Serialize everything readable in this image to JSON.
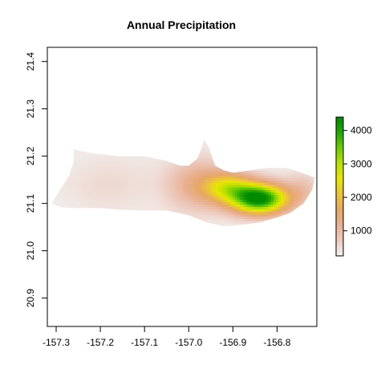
{
  "chart_data": {
    "type": "heatmap",
    "title": "Annual Precipitation",
    "xlabel": "",
    "ylabel": "",
    "xlim": [
      -157.32,
      -156.71
    ],
    "ylim": [
      20.84,
      21.43
    ],
    "x_ticks": [
      -157.3,
      -157.2,
      -157.1,
      -157.0,
      -156.9,
      -156.8
    ],
    "x_tick_labels": [
      "-157.3",
      "-157.2",
      "-157.1",
      "-157.0",
      "-156.9",
      "-156.8"
    ],
    "y_ticks": [
      20.9,
      21.0,
      21.1,
      21.2,
      21.3,
      21.4
    ],
    "y_tick_labels": [
      "20.9",
      "21.0",
      "21.1",
      "21.2",
      "21.3",
      "21.4"
    ],
    "grid": false,
    "legend": {
      "type": "colorbar",
      "placement": "right",
      "range": [
        250,
        4400
      ],
      "ticks": [
        1000,
        2000,
        3000,
        4000
      ],
      "tick_labels": [
        "1000",
        "2000",
        "3000",
        "4000"
      ],
      "colors": [
        "#f2f2f2",
        "#eccbbf",
        "#e8b090",
        "#e6a766",
        "#ebc43a",
        "#e8e600",
        "#b8e000",
        "#6ccc00",
        "#24a800",
        "#008a00"
      ]
    },
    "island_outline": [
      [
        -157.31,
        21.1
      ],
      [
        -157.29,
        21.13
      ],
      [
        -157.27,
        21.16
      ],
      [
        -157.26,
        21.19
      ],
      [
        -157.26,
        21.215
      ],
      [
        -157.24,
        21.21
      ],
      [
        -157.21,
        21.205
      ],
      [
        -157.16,
        21.2
      ],
      [
        -157.1,
        21.2
      ],
      [
        -157.05,
        21.19
      ],
      [
        -157.02,
        21.18
      ],
      [
        -157.0,
        21.18
      ],
      [
        -156.98,
        21.195
      ],
      [
        -156.97,
        21.22
      ],
      [
        -156.965,
        21.235
      ],
      [
        -156.955,
        21.22
      ],
      [
        -156.94,
        21.18
      ],
      [
        -156.92,
        21.17
      ],
      [
        -156.9,
        21.165
      ],
      [
        -156.86,
        21.17
      ],
      [
        -156.82,
        21.175
      ],
      [
        -156.78,
        21.175
      ],
      [
        -156.76,
        21.17
      ],
      [
        -156.73,
        21.16
      ],
      [
        -156.715,
        21.155
      ],
      [
        -156.72,
        21.13
      ],
      [
        -156.74,
        21.1
      ],
      [
        -156.77,
        21.08
      ],
      [
        -156.8,
        21.07
      ],
      [
        -156.84,
        21.06
      ],
      [
        -156.88,
        21.055
      ],
      [
        -156.92,
        21.052
      ],
      [
        -156.96,
        21.06
      ],
      [
        -157.0,
        21.075
      ],
      [
        -157.05,
        21.085
      ],
      [
        -157.1,
        21.085
      ],
      [
        -157.16,
        21.087
      ],
      [
        -157.2,
        21.09
      ],
      [
        -157.25,
        21.09
      ],
      [
        -157.29,
        21.092
      ]
    ],
    "precipitation_field": {
      "background_mm": 300,
      "sources": [
        {
          "x": -156.84,
          "y": 21.11,
          "sx": 0.045,
          "sy": 0.022,
          "peak_mm": 4200
        },
        {
          "x": -156.91,
          "y": 21.135,
          "sx": 0.04,
          "sy": 0.022,
          "peak_mm": 1800
        },
        {
          "x": -156.98,
          "y": 21.14,
          "sx": 0.05,
          "sy": 0.04,
          "peak_mm": 900
        },
        {
          "x": -156.74,
          "y": 21.13,
          "sx": 0.03,
          "sy": 0.025,
          "peak_mm": 500
        },
        {
          "x": -157.18,
          "y": 21.14,
          "sx": 0.07,
          "sy": 0.04,
          "peak_mm": 250
        }
      ]
    }
  }
}
